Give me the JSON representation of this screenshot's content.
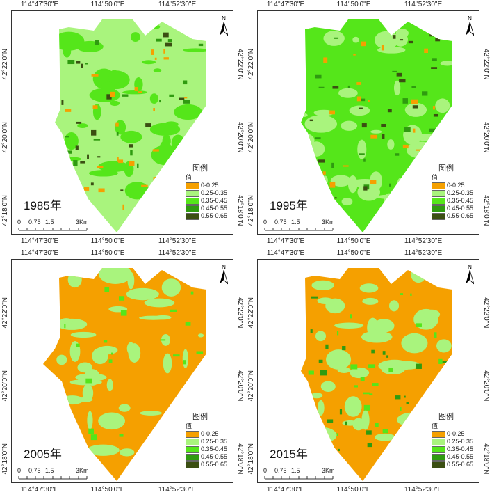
{
  "axes": {
    "top_labels": [
      "114°47'30\"E",
      "114°50'0\"E",
      "114°52'30\"E"
    ],
    "bottom_labels": [
      "114°47'30\"E",
      "114°50'0\"E",
      "114°52'30\"E"
    ],
    "side_labels": [
      "42°22'0\"N",
      "42°20'0\"N",
      "42°18'0\"N"
    ]
  },
  "legend": {
    "title": "图例",
    "subtitle": "值",
    "classes": [
      {
        "label": "0-0.25",
        "color": "#f5a000"
      },
      {
        "label": "0.25-0.35",
        "color": "#a9f47d"
      },
      {
        "label": "0.35-0.45",
        "color": "#55e61a"
      },
      {
        "label": "0.45-0.55",
        "color": "#2f9b10"
      },
      {
        "label": "0.55-0.65",
        "color": "#3b4f12"
      }
    ]
  },
  "scale_bar": {
    "labels": [
      "0",
      "0.75",
      "1.5",
      "3Km"
    ]
  },
  "north_arrow": {
    "label": "N",
    "icon": "north-arrow-icon"
  },
  "panels": [
    {
      "year": "1985年",
      "dominant_class": 1,
      "secondary_class": 2,
      "patch_classes": [
        3,
        4,
        0
      ]
    },
    {
      "year": "1995年",
      "dominant_class": 2,
      "secondary_class": 1,
      "patch_classes": [
        3,
        4,
        0
      ]
    },
    {
      "year": "2005年",
      "dominant_class": 0,
      "secondary_class": 1,
      "patch_classes": [
        2
      ]
    },
    {
      "year": "2015年",
      "dominant_class": 0,
      "secondary_class": 1,
      "patch_classes": [
        3,
        2
      ]
    }
  ]
}
